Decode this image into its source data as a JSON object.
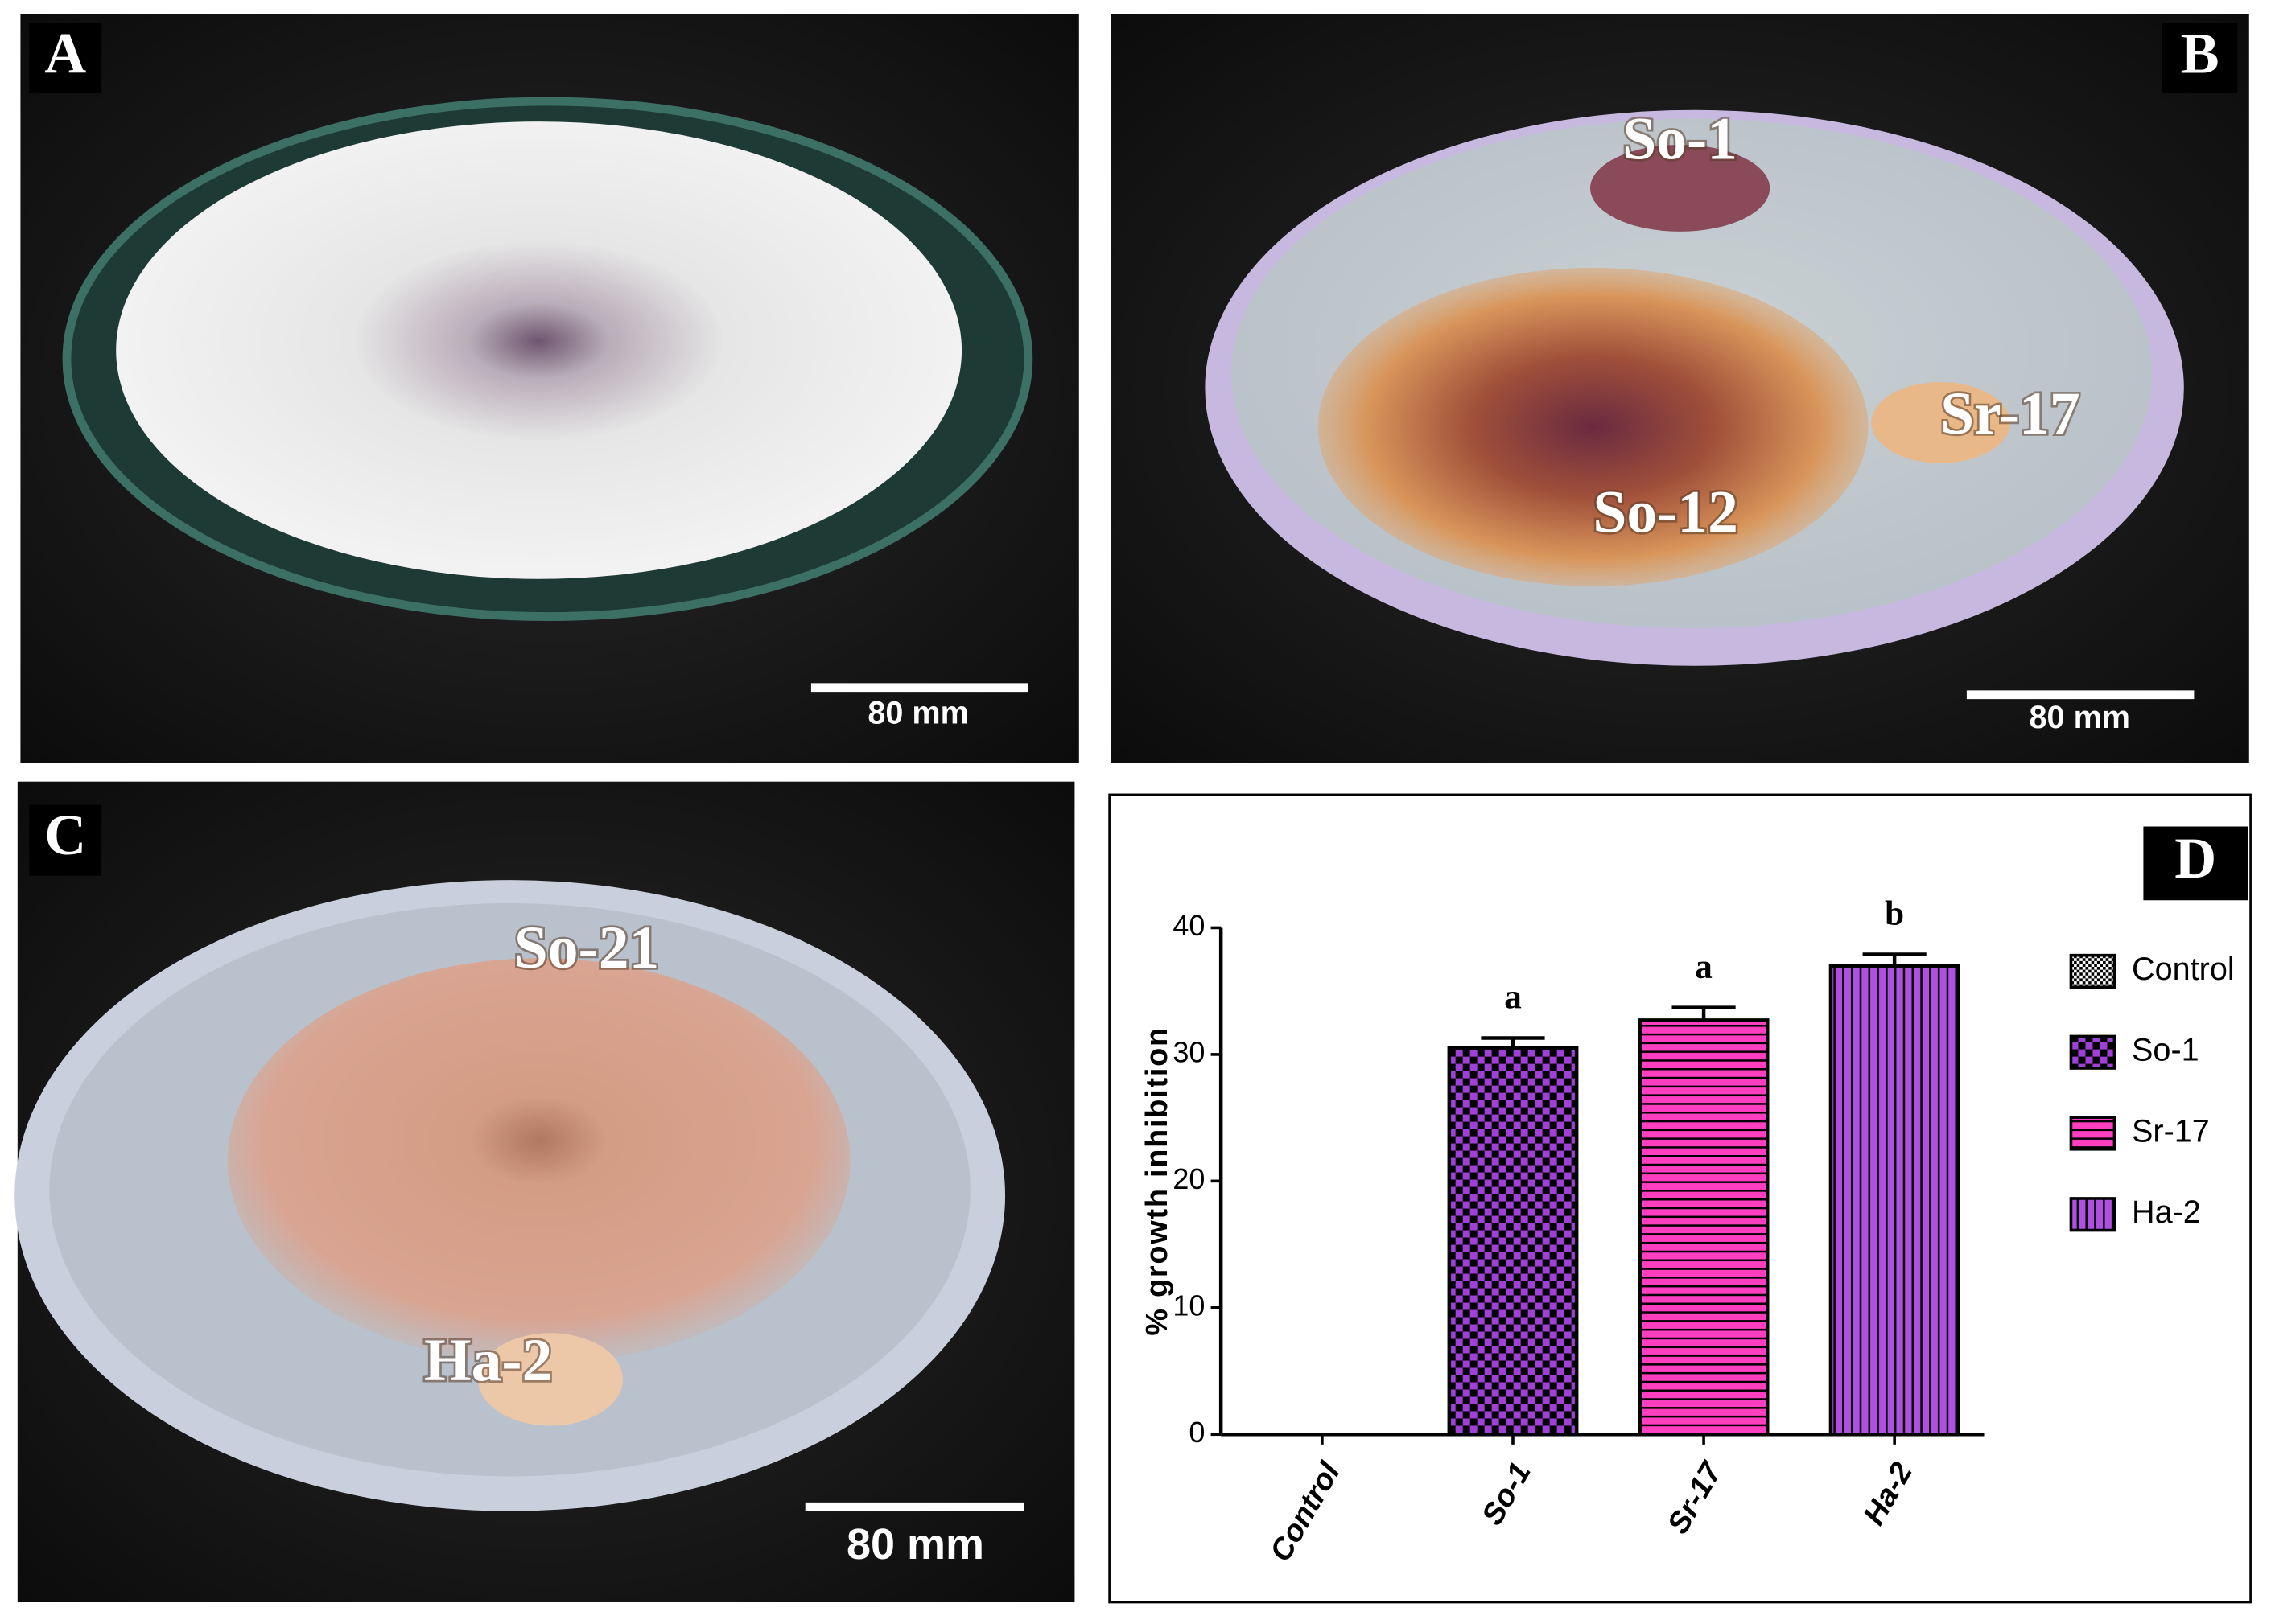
{
  "panels": [
    {
      "label": "A",
      "scale_bar": "80 mm"
    },
    {
      "label": "B",
      "annotations": [
        "So-1",
        "Sr-17",
        "So-12"
      ],
      "scale_bar": "80 mm"
    },
    {
      "label": "C",
      "annotations": [
        "So-21",
        "Ha-2"
      ],
      "scale_bar": "80 mm"
    },
    {
      "label": "D"
    }
  ],
  "chart_data": {
    "type": "bar",
    "y_label": "% growth inhibition",
    "categories": [
      "Control",
      "So-1",
      "Sr-17",
      "Ha-2"
    ],
    "values": [
      0,
      30.5,
      32.7,
      37.0
    ],
    "errors": [
      0,
      0.8,
      1.0,
      0.9
    ],
    "significance": [
      null,
      "a",
      "a",
      "b"
    ],
    "colors": [
      "#ffffff",
      "#a040d8",
      "#ff3fc0",
      "#b050e0"
    ],
    "patterns": [
      "fine-checker",
      "checker",
      "horizontal",
      "vertical"
    ],
    "ylim": [
      0,
      40
    ],
    "yticks": [
      0,
      10,
      20,
      30,
      40
    ],
    "legend": "right"
  }
}
